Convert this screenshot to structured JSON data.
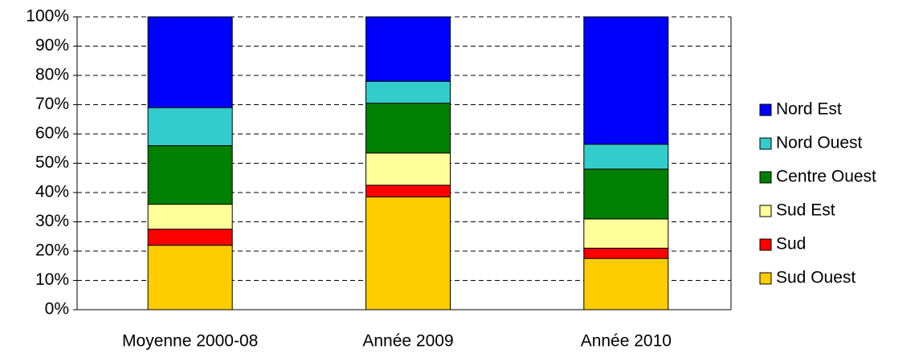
{
  "chart_data": {
    "type": "stacked_bar",
    "categories": [
      "Moyenne 2000-08",
      "Année 2009",
      "Année 2010"
    ],
    "series": [
      {
        "name": "Sud Ouest",
        "color": "#ffcc00",
        "values": [
          22,
          38.5,
          17.5
        ]
      },
      {
        "name": "Sud",
        "color": "#ff0000",
        "values": [
          5.5,
          4,
          3.5
        ]
      },
      {
        "name": "Sud Est",
        "color": "#ffff99",
        "values": [
          8.5,
          11,
          10
        ]
      },
      {
        "name": "Centre Ouest",
        "color": "#008000",
        "values": [
          20,
          17,
          17
        ]
      },
      {
        "name": "Nord Ouest",
        "color": "#33cccc",
        "values": [
          13,
          7.5,
          8.5
        ]
      },
      {
        "name": "Nord Est",
        "color": "#0000ff",
        "values": [
          31,
          22,
          43.5
        ]
      }
    ],
    "ylim": [
      0,
      100
    ],
    "yticks": [
      {
        "value": 0,
        "label": "0%"
      },
      {
        "value": 10,
        "label": "10%"
      },
      {
        "value": 20,
        "label": "20%"
      },
      {
        "value": 30,
        "label": "30%"
      },
      {
        "value": 40,
        "label": "40%"
      },
      {
        "value": 50,
        "label": "50%"
      },
      {
        "value": 60,
        "label": "60%"
      },
      {
        "value": 70,
        "label": "70%"
      },
      {
        "value": 80,
        "label": "80%"
      },
      {
        "value": 90,
        "label": "90%"
      },
      {
        "value": 100,
        "label": "100%"
      }
    ],
    "grid": true,
    "legend": "right"
  }
}
